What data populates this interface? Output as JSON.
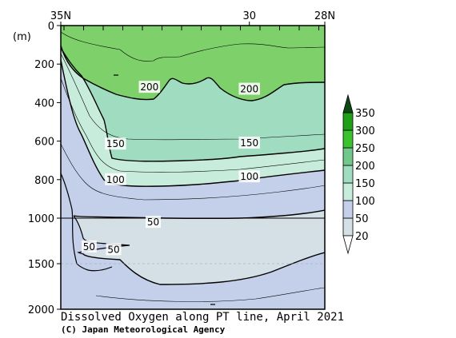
{
  "chart_data": {
    "type": "contour",
    "title": "Dissolved Oxygen along PT line, April 2021",
    "credit": "(C) Japan Meteorological Agency",
    "x_axis": {
      "ticks": [
        {
          "value": 35,
          "label": "35N"
        },
        {
          "value": 30,
          "label": "30"
        },
        {
          "value": 28,
          "label": "28N"
        }
      ],
      "range": [
        35,
        28
      ],
      "position": "top"
    },
    "y_axis": {
      "unit_label": "(m)",
      "ticks": [
        0,
        200,
        400,
        600,
        800,
        1000,
        1500,
        2000
      ],
      "tick_labels": [
        "0",
        "200",
        "400",
        "600",
        "800",
        "1000",
        "1500",
        "2000"
      ],
      "range": [
        0,
        2000
      ],
      "scale": "piecewise: 0-1000 linear, 1000-2000 compressed",
      "inverted": true
    },
    "contour_labels": [
      {
        "value": 200,
        "label": "200",
        "lat": 32.65,
        "depth": 320
      },
      {
        "value": 200,
        "label": "200",
        "lat": 30.0,
        "depth": 330
      },
      {
        "value": 150,
        "label": "150",
        "lat": 33.55,
        "depth": 615
      },
      {
        "value": 150,
        "label": "150",
        "lat": 30.0,
        "depth": 610
      },
      {
        "value": 100,
        "label": "100",
        "lat": 33.55,
        "depth": 800
      },
      {
        "value": 100,
        "label": "100",
        "lat": 30.0,
        "depth": 785
      },
      {
        "value": 50,
        "label": "50",
        "lat": 32.55,
        "depth": 1045
      },
      {
        "value": 50,
        "label": "50",
        "lat": 34.25,
        "depth": 1315
      },
      {
        "value": 50,
        "label": "50",
        "lat": 33.6,
        "depth": 1345
      }
    ],
    "colorbar": {
      "levels": [
        20,
        50,
        100,
        150,
        200,
        250,
        300,
        350
      ],
      "labels": [
        "20",
        "50",
        "100",
        "150",
        "200",
        "250",
        "300",
        "350"
      ],
      "colors": [
        "#ffffff",
        "#d4e0e6",
        "#c4cfea",
        "#c8ecdc",
        "#a0dcc0",
        "#72c88c",
        "#3cc230",
        "#20a018",
        "#0a4a12"
      ]
    },
    "regions": [
      {
        "range": [
          200,
          250
        ],
        "color": "#7dd06a",
        "location": "surface layer, shallowest near 30N"
      },
      {
        "range": [
          150,
          200
        ],
        "color": "#a0dcc0",
        "location": "upper thermocline"
      },
      {
        "range": [
          100,
          150
        ],
        "color": "#c8ecdc",
        "location": "thin band near 700-800 m"
      },
      {
        "range": [
          50,
          100
        ],
        "color": "#c4cfea",
        "location": "intermediate and deep water"
      },
      {
        "range": [
          20,
          50
        ],
        "color": "#d4e0e6",
        "location": "oxygen minimum layer ~1000-1600 m"
      }
    ]
  }
}
